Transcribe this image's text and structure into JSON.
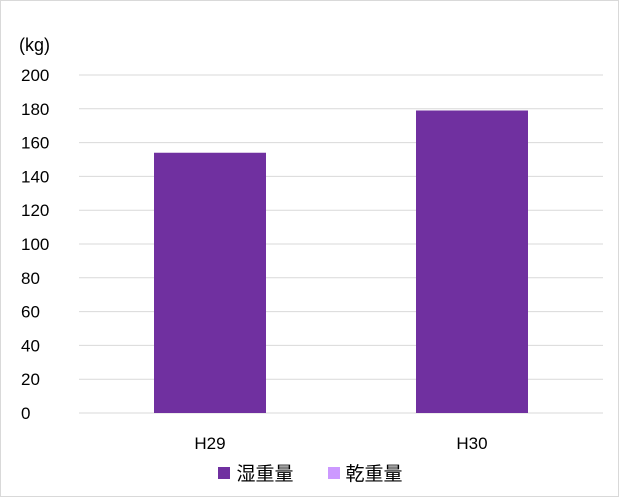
{
  "chart_data": {
    "type": "bar",
    "unit_label": "(kg)",
    "categories": [
      "H29",
      "H30"
    ],
    "series": [
      {
        "name": "湿重量",
        "color": "#7030a0",
        "values": [
          154,
          179
        ]
      },
      {
        "name": "乾重量",
        "color": "#cc99ff",
        "values": [
          0,
          0
        ]
      }
    ],
    "ylim": [
      0,
      200
    ],
    "yticks": [
      "0",
      "20",
      "40",
      "60",
      "80",
      "100",
      "120",
      "140",
      "160",
      "180",
      "200"
    ],
    "grid": true,
    "legend_position": "bottom"
  }
}
